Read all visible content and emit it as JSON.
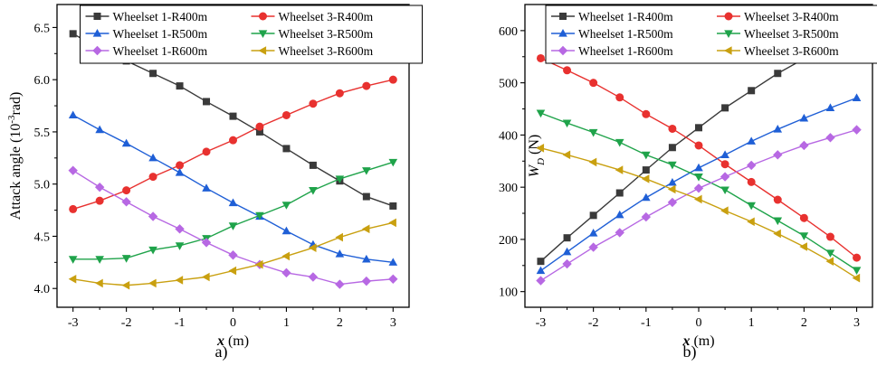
{
  "chart_data": [
    {
      "type": "line",
      "caption": "a)",
      "xlabel_var": "x",
      "xlabel_unit": " (m)",
      "ylabel": "Attack angle (10",
      "ylabel_sup": "-3",
      "ylabel_tail": "rad)",
      "xlim": [
        -3.3,
        3.3
      ],
      "ylim": [
        3.82,
        6.72
      ],
      "xticks": [
        -3,
        -2,
        -1,
        0,
        1,
        2,
        3
      ],
      "yticks": [
        4.0,
        4.5,
        5.0,
        5.5,
        6.0,
        6.5
      ],
      "ytick_labels": [
        "4.0",
        "4.5",
        "5.0",
        "5.5",
        "6.0",
        "6.5"
      ],
      "x": [
        -3,
        -2.5,
        -2,
        -1.5,
        -1,
        -0.5,
        0,
        0.5,
        1,
        1.5,
        2,
        2.5,
        3
      ],
      "legend_location": "top, inside plot, 2 columns",
      "series": [
        {
          "name": "Wheelset 1-R400m",
          "color": "#3a3a3a",
          "marker": "square",
          "values": [
            6.44,
            6.3,
            6.18,
            6.06,
            5.94,
            5.79,
            5.65,
            5.5,
            5.34,
            5.18,
            5.03,
            4.88,
            4.79
          ]
        },
        {
          "name": "Wheelset 3-R400m",
          "color": "#e8312f",
          "marker": "circle",
          "values": [
            4.76,
            4.84,
            4.94,
            5.07,
            5.18,
            5.31,
            5.42,
            5.55,
            5.66,
            5.77,
            5.87,
            5.94,
            6.0
          ]
        },
        {
          "name": "Wheelset 1-R500m",
          "color": "#1f5fd6",
          "marker": "triangle-up",
          "values": [
            5.66,
            5.52,
            5.39,
            5.25,
            5.11,
            4.96,
            4.82,
            4.69,
            4.55,
            4.42,
            4.33,
            4.28,
            4.25
          ]
        },
        {
          "name": "Wheelset 3-R500m",
          "color": "#1fa34a",
          "marker": "triangle-down",
          "values": [
            4.28,
            4.28,
            4.29,
            4.37,
            4.41,
            4.48,
            4.6,
            4.7,
            4.8,
            4.94,
            5.05,
            5.13,
            5.21
          ]
        },
        {
          "name": "Wheelset 1-R600m",
          "color": "#b768e3",
          "marker": "diamond",
          "values": [
            5.13,
            4.97,
            4.83,
            4.69,
            4.57,
            4.44,
            4.32,
            4.23,
            4.15,
            4.11,
            4.04,
            4.07,
            4.09
          ]
        },
        {
          "name": "Wheelset 3-R600m",
          "color": "#c9a010",
          "marker": "triangle-left",
          "values": [
            4.09,
            4.05,
            4.03,
            4.05,
            4.08,
            4.11,
            4.17,
            4.23,
            4.31,
            4.39,
            4.49,
            4.57,
            4.63
          ]
        }
      ]
    },
    {
      "type": "line",
      "caption": "b)",
      "xlabel_var": "x",
      "xlabel_unit": " (m)",
      "ylabel_var": "W",
      "ylabel_sub": "D",
      "ylabel_unit": " (N)",
      "xlim": [
        -3.3,
        3.3
      ],
      "ylim": [
        70,
        650
      ],
      "xticks": [
        -3,
        -2,
        -1,
        0,
        1,
        2,
        3
      ],
      "yticks": [
        100,
        200,
        300,
        400,
        500,
        600
      ],
      "ytick_labels": [
        "100",
        "200",
        "300",
        "400",
        "500",
        "600"
      ],
      "x": [
        -3,
        -2.5,
        -2,
        -1.5,
        -1,
        -0.5,
        0,
        0.5,
        1,
        1.5,
        2,
        2.5,
        3
      ],
      "legend_location": "top, inside plot, 2 columns",
      "series": [
        {
          "name": "Wheelset 1-R400m",
          "color": "#3a3a3a",
          "marker": "square",
          "values": [
            158,
            203,
            246,
            289,
            333,
            376,
            414,
            452,
            485,
            518,
            546,
            573,
            594
          ]
        },
        {
          "name": "Wheelset 3-R400m",
          "color": "#e8312f",
          "marker": "circle",
          "values": [
            547,
            524,
            500,
            472,
            440,
            412,
            380,
            344,
            310,
            276,
            241,
            205,
            165
          ]
        },
        {
          "name": "Wheelset 1-R500m",
          "color": "#1f5fd6",
          "marker": "triangle-up",
          "values": [
            140,
            176,
            212,
            247,
            280,
            309,
            337,
            362,
            388,
            411,
            432,
            452,
            471
          ]
        },
        {
          "name": "Wheelset 3-R500m",
          "color": "#1fa34a",
          "marker": "triangle-down",
          "values": [
            442,
            423,
            405,
            386,
            362,
            343,
            320,
            295,
            265,
            236,
            207,
            174,
            141
          ]
        },
        {
          "name": "Wheelset 1-R600m",
          "color": "#b768e3",
          "marker": "diamond",
          "values": [
            121,
            153,
            185,
            213,
            243,
            271,
            298,
            320,
            342,
            362,
            380,
            395,
            410
          ]
        },
        {
          "name": "Wheelset 3-R600m",
          "color": "#c9a010",
          "marker": "triangle-left",
          "values": [
            375,
            362,
            348,
            333,
            316,
            296,
            277,
            255,
            234,
            211,
            186,
            158,
            126
          ]
        }
      ]
    }
  ]
}
